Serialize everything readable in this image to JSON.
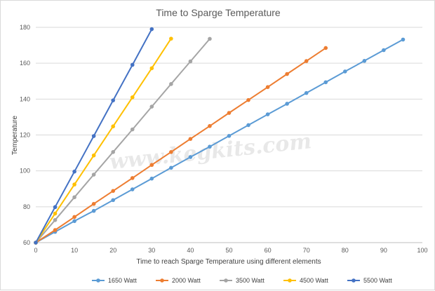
{
  "chart_data": {
    "type": "line",
    "title": "Time to Sparge Temperature",
    "xlabel": "Time to reach Sparge Temperature  using different elements",
    "ylabel": "Temperature",
    "xlim": [
      0,
      100
    ],
    "ylim": [
      60,
      180
    ],
    "x_ticks": [
      "0",
      "10",
      "20",
      "30",
      "40",
      "50",
      "60",
      "70",
      "80",
      "90",
      "100"
    ],
    "y_ticks": [
      "60",
      "80",
      "100",
      "120",
      "140",
      "160",
      "180"
    ],
    "grid": true,
    "legend_position": "bottom",
    "watermark": "www.kegkits.com",
    "series": [
      {
        "name": "1650 Watt",
        "color": "#5b9bd5",
        "x": [
          0,
          5,
          10,
          15,
          20,
          25,
          30,
          35,
          40,
          45,
          50,
          55,
          60,
          65,
          70,
          75,
          80,
          85,
          90,
          95
        ],
        "y": [
          60,
          66,
          72,
          77.7,
          83.7,
          89.7,
          95.7,
          101.7,
          107.7,
          113.5,
          119.5,
          125.5,
          131.5,
          137.4,
          143.4,
          149.4,
          155.4,
          161.3,
          167.3,
          173.2
        ]
      },
      {
        "name": "2000 Watt",
        "color": "#ed7d31",
        "x": [
          0,
          5,
          10,
          15,
          20,
          25,
          30,
          35,
          40,
          45,
          50,
          55,
          60,
          65,
          70,
          75
        ],
        "y": [
          60,
          67,
          74.3,
          81.6,
          88.8,
          96,
          103.3,
          110.5,
          117.8,
          125,
          132.3,
          139.5,
          146.7,
          154,
          161.2,
          168.5
        ]
      },
      {
        "name": "3500 Watt",
        "color": "#a5a5a5",
        "x": [
          0,
          5,
          10,
          15,
          20,
          25,
          30,
          35,
          40,
          45
        ],
        "y": [
          60,
          72.6,
          85.3,
          97.9,
          110.5,
          123.1,
          135.8,
          148.4,
          161,
          173.6
        ]
      },
      {
        "name": "4500 Watt",
        "color": "#ffc000",
        "x": [
          0,
          5,
          10,
          15,
          20,
          25,
          30,
          35
        ],
        "y": [
          60,
          76.2,
          92.4,
          108.6,
          124.8,
          141,
          157.2,
          173.7
        ]
      },
      {
        "name": "5500 Watt",
        "color": "#4472c4",
        "x": [
          0,
          5,
          10,
          15,
          20,
          25,
          30
        ],
        "y": [
          60,
          79.8,
          99.6,
          119.4,
          139.3,
          159.1,
          179
        ]
      }
    ]
  }
}
